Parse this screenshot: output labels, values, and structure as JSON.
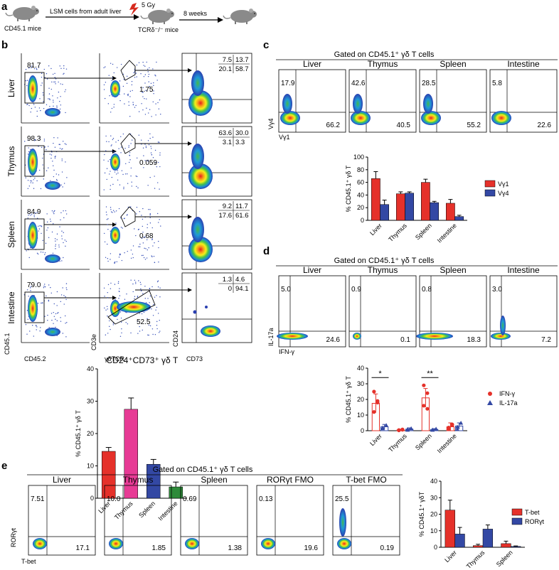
{
  "panel_a": {
    "label": "a",
    "donor": "CD45.1 mice",
    "transfer": "LSM cells from adult liver",
    "dose": "5 Gy",
    "recipient": "TCRδ⁻/⁻ mice",
    "time": "8 weeks"
  },
  "panel_b": {
    "label": "b",
    "rows": [
      {
        "tissue": "Liver",
        "gate1": "81.7",
        "gate2": "1.75",
        "q_ul": "7.5",
        "q_ur": "13.7",
        "q_ll": "20.1",
        "q_lr": "58.7"
      },
      {
        "tissue": "Thymus",
        "gate1": "98.3",
        "gate2": "0.059",
        "q_ul": "63.6",
        "q_ur": "30.0",
        "q_ll": "3.1",
        "q_lr": "3.3"
      },
      {
        "tissue": "Spleen",
        "gate1": "84.9",
        "gate2": "0.68",
        "q_ul": "9.2",
        "q_ur": "11.7",
        "q_ll": "17.6",
        "q_lr": "61.6"
      },
      {
        "tissue": "Intestine",
        "gate1": "79.0",
        "gate2": "52.5",
        "q_ul": "1.3",
        "q_ur": "4.6",
        "q_ll": "0",
        "q_lr": "94.1"
      }
    ],
    "axes": {
      "c1x": "CD45.2",
      "c1y": "CD45.1",
      "c2x": "γδTCR",
      "c2y": "CD3e",
      "c3x": "CD73",
      "c3y": "CD24"
    }
  },
  "panel_c": {
    "label": "c",
    "header": "Gated on CD45.1⁺ γδ T cells",
    "tissues": [
      "Liver",
      "Thymus",
      "Spleen",
      "Intestine"
    ],
    "ul": [
      "17.9",
      "42.6",
      "28.5",
      "5.8"
    ],
    "lr": [
      "66.2",
      "40.5",
      "55.2",
      "22.6"
    ],
    "xaxis": "Vγ1",
    "yaxis": "Vγ4"
  },
  "panel_d": {
    "label": "d",
    "header": "Gated on CD45.1⁺ γδ T cells",
    "tissues": [
      "Liver",
      "Thymus",
      "Spleen",
      "Intestine"
    ],
    "ul": [
      "5.0",
      "0.9",
      "0.8",
      "3.0"
    ],
    "lr": [
      "24.6",
      "0.1",
      "18.3",
      "7.2"
    ],
    "xaxis": "IFN-γ",
    "yaxis": "IL-17a"
  },
  "panel_e": {
    "label": "e",
    "header": "Gated on CD45.1⁺ γδ T cells",
    "samples": [
      "Liver",
      "Thymus",
      "Spleen",
      "RORγt FMO",
      "T-bet FMO"
    ],
    "ul": [
      "7.51",
      "10.0",
      "0.69",
      "0.13",
      "25.5"
    ],
    "lr": [
      "17.1",
      "1.85",
      "1.38",
      "19.6",
      "0.19"
    ],
    "xaxis": "T-bet",
    "yaxis": "RORγt"
  },
  "chart_data": [
    {
      "id": "b_bar",
      "type": "bar",
      "title": "CD24⁺CD73⁺ γδ T",
      "ylabel": "% CD45.1⁺ γδ T",
      "categories": [
        "Liver",
        "Thymus",
        "Spleen",
        "Intestine"
      ],
      "values": [
        14.5,
        27.5,
        10.5,
        3.5
      ],
      "errors": [
        1.2,
        3.5,
        1.5,
        1.5
      ],
      "colors": [
        "#e5312a",
        "#e73b95",
        "#3348a4",
        "#2e8b3a"
      ],
      "ylim": [
        0,
        40
      ],
      "yticks": [
        0,
        10,
        20,
        30,
        40
      ]
    },
    {
      "id": "c_bar",
      "type": "bar",
      "ylabel": "% CD45.1⁺ γδ T",
      "categories": [
        "Liver",
        "Thymus",
        "Spleen",
        "Intestine"
      ],
      "series": [
        {
          "name": "Vγ1",
          "values": [
            66,
            42,
            60,
            27
          ],
          "errors": [
            11,
            3,
            5,
            6
          ],
          "color": "#e5312a"
        },
        {
          "name": "Vγ4",
          "values": [
            25,
            43,
            28,
            6
          ],
          "errors": [
            7,
            2,
            2,
            2
          ],
          "color": "#3348a4"
        }
      ],
      "ylim": [
        0,
        100
      ],
      "yticks": [
        0,
        20,
        40,
        60,
        80,
        100
      ]
    },
    {
      "id": "d_bar",
      "type": "scatter",
      "ylabel": "% CD45.1⁺ γδ T",
      "categories": [
        "Liver",
        "Thymus",
        "Spleen",
        "Intestine"
      ],
      "series": [
        {
          "name": "IFN-γ",
          "means": [
            17.5,
            0.5,
            21,
            2.5
          ],
          "errors": [
            6,
            0.4,
            6,
            2.5
          ],
          "points": [
            [
              25,
              18,
              12,
              19
            ],
            [
              0.2,
              0.6,
              0.4,
              0.8
            ],
            [
              29,
              24,
              16,
              14
            ],
            [
              1,
              4,
              2,
              3.5
            ]
          ],
          "color": "#e5312a"
        },
        {
          "name": "IL-17a",
          "means": [
            2.5,
            1,
            0.8,
            3
          ],
          "errors": [
            1.5,
            0.8,
            0.5,
            2
          ],
          "points": [
            [
              1.5,
              3.5,
              2
            ],
            [
              0.5,
              1.5,
              1
            ],
            [
              0.5,
              1.2,
              0.6
            ],
            [
              1,
              5,
              2.5
            ]
          ],
          "color": "#3348a4"
        }
      ],
      "significance": [
        "*",
        "**"
      ],
      "ylim": [
        0,
        40
      ],
      "yticks": [
        0,
        10,
        20,
        30,
        40
      ]
    },
    {
      "id": "e_bar",
      "type": "bar",
      "ylabel": "% CD45.1⁺ γδT",
      "categories": [
        "Liver",
        "Thymus",
        "Spleen"
      ],
      "series": [
        {
          "name": "T-bet",
          "values": [
            22.5,
            1,
            2.2
          ],
          "errors": [
            6,
            0.8,
            1.5
          ],
          "color": "#e5312a"
        },
        {
          "name": "RORγt",
          "values": [
            8,
            11,
            0.5
          ],
          "errors": [
            4,
            2.5,
            0.3
          ],
          "color": "#3348a4"
        }
      ],
      "ylim": [
        0,
        40
      ],
      "yticks": [
        0,
        10,
        20,
        30,
        40
      ]
    }
  ]
}
